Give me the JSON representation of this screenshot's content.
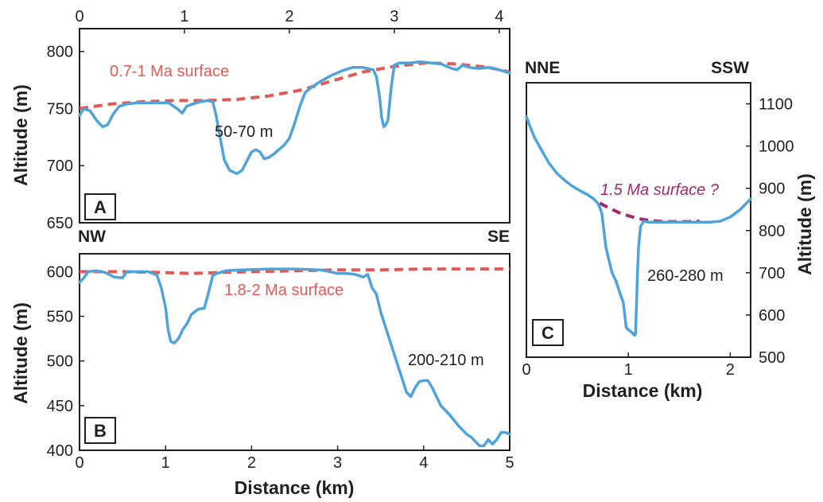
{
  "colors": {
    "profile": "#4fa3d8",
    "surface_red": "#e15a56",
    "surface_purple": "#9e2a6c",
    "ink": "#231f20"
  },
  "chart_data": [
    {
      "type": "line",
      "panel": "A",
      "xlim": [
        0,
        4.1
      ],
      "ylim": [
        650,
        820
      ],
      "x_ticks": [
        0,
        1,
        2,
        3,
        4
      ],
      "y_ticks": [
        650,
        700,
        750,
        800
      ],
      "x_axis_position": "top",
      "ylabel": "Altitude (m)",
      "series": [
        {
          "role": "profile",
          "x": [
            0,
            0.04,
            0.1,
            0.16,
            0.22,
            0.27,
            0.32,
            0.38,
            0.45,
            0.55,
            0.7,
            0.85,
            0.93,
            0.98,
            1.02,
            1.08,
            1.15,
            1.22,
            1.27,
            1.3,
            1.34,
            1.38,
            1.43,
            1.5,
            1.55,
            1.6,
            1.64,
            1.68,
            1.72,
            1.76,
            1.8,
            1.85,
            1.9,
            1.95,
            2.0,
            2.05,
            2.1,
            2.15,
            2.2,
            2.3,
            2.4,
            2.5,
            2.6,
            2.7,
            2.8,
            2.83,
            2.86,
            2.88,
            2.9,
            2.92,
            2.94,
            2.97,
            3.0,
            3.05,
            3.15,
            3.25,
            3.35,
            3.45,
            3.55,
            3.6,
            3.65,
            3.72,
            3.8,
            3.9,
            4.0,
            4.1
          ],
          "y": [
            744,
            750,
            748,
            740,
            734,
            736,
            745,
            752,
            754,
            755,
            755,
            755,
            750,
            746,
            752,
            754,
            756,
            757,
            756,
            745,
            725,
            705,
            696,
            693,
            696,
            705,
            712,
            714,
            712,
            706,
            707,
            710,
            714,
            718,
            724,
            737,
            752,
            764,
            768,
            774,
            779,
            783,
            786,
            786,
            784,
            778,
            760,
            742,
            734,
            736,
            740,
            768,
            788,
            790,
            790,
            791,
            790,
            789,
            785,
            784,
            788,
            786,
            785,
            786,
            784,
            781
          ]
        },
        {
          "role": "surface",
          "name": "0.7-1 Ma surface",
          "x": [
            0,
            0.3,
            0.6,
            0.9,
            1.2,
            1.5,
            1.8,
            2.1,
            2.4,
            2.7,
            3.0,
            3.3,
            3.6,
            3.9,
            4.1
          ],
          "y": [
            750,
            754,
            756,
            757,
            757,
            758,
            761,
            766,
            774,
            782,
            787,
            790,
            789,
            786,
            782
          ]
        }
      ],
      "annotations": [
        "0.7-1 Ma surface",
        "50-70 m"
      ]
    },
    {
      "type": "line",
      "panel": "B",
      "direction_left": "NW",
      "direction_right": "SE",
      "xlim": [
        0,
        5
      ],
      "ylim": [
        400,
        620
      ],
      "x_ticks": [
        0,
        1,
        2,
        3,
        4,
        5
      ],
      "y_ticks": [
        400,
        450,
        500,
        550,
        600
      ],
      "xlabel": "Distance (km)",
      "ylabel": "Altitude (m)",
      "series": [
        {
          "role": "profile",
          "x": [
            0,
            0.05,
            0.1,
            0.2,
            0.3,
            0.4,
            0.5,
            0.55,
            0.65,
            0.8,
            0.9,
            0.95,
            1.0,
            1.03,
            1.06,
            1.1,
            1.15,
            1.2,
            1.25,
            1.3,
            1.38,
            1.45,
            1.5,
            1.55,
            1.6,
            1.7,
            1.9,
            2.2,
            2.5,
            2.8,
            3.0,
            3.1,
            3.2,
            3.3,
            3.35,
            3.4,
            3.45,
            3.5,
            3.55,
            3.6,
            3.65,
            3.7,
            3.75,
            3.8,
            3.85,
            3.9,
            3.95,
            4.0,
            4.05,
            4.1,
            4.15,
            4.2,
            4.3,
            4.4,
            4.5,
            4.55,
            4.6,
            4.65,
            4.7,
            4.75,
            4.8,
            4.85,
            4.9,
            4.95,
            5.0
          ],
          "y": [
            588,
            593,
            600,
            601,
            599,
            594,
            593,
            600,
            600,
            600,
            596,
            582,
            560,
            535,
            522,
            520,
            525,
            535,
            542,
            552,
            558,
            559,
            577,
            596,
            598,
            601,
            602,
            603,
            603,
            602,
            598,
            598,
            597,
            594,
            597,
            582,
            575,
            555,
            540,
            525,
            510,
            495,
            480,
            465,
            460,
            470,
            477,
            478,
            478,
            470,
            460,
            450,
            440,
            428,
            418,
            415,
            410,
            405,
            405,
            412,
            407,
            412,
            420,
            420,
            418
          ]
        },
        {
          "role": "surface",
          "name": "1.8-2 Ma surface",
          "x": [
            0,
            0.5,
            1.0,
            1.3,
            1.6,
            2.0,
            2.5,
            3.0,
            3.5,
            4.0,
            4.5,
            5.0
          ],
          "y": [
            600,
            600,
            599,
            598,
            599,
            600,
            601,
            602,
            602,
            603,
            603,
            603
          ]
        }
      ],
      "annotations": [
        "1.8-2 Ma surface",
        "200-210 m"
      ]
    },
    {
      "type": "line",
      "panel": "C",
      "direction_left": "NNE",
      "direction_right": "SSW",
      "xlim": [
        0,
        2.2
      ],
      "ylim": [
        500,
        1150
      ],
      "x_ticks": [
        0,
        1,
        2
      ],
      "y_ticks": [
        500,
        600,
        700,
        800,
        900,
        1000,
        1100
      ],
      "y_axis_position": "right",
      "xlabel": "Distance (km)",
      "ylabel": "Altitude (m)",
      "series": [
        {
          "role": "profile",
          "x": [
            0,
            0.03,
            0.08,
            0.15,
            0.22,
            0.3,
            0.38,
            0.45,
            0.52,
            0.6,
            0.66,
            0.7,
            0.72,
            0.74,
            0.76,
            0.78,
            0.8,
            0.84,
            0.88,
            0.92,
            0.95,
            0.98,
            1.0,
            1.03,
            1.06,
            1.07,
            1.08,
            1.09,
            1.1,
            1.12,
            1.15,
            1.2,
            1.3,
            1.4,
            1.5,
            1.6,
            1.7,
            1.8,
            1.9,
            2.0,
            2.1,
            2.2
          ],
          "y": [
            1070,
            1050,
            1020,
            990,
            960,
            935,
            918,
            905,
            895,
            885,
            875,
            865,
            855,
            840,
            800,
            760,
            740,
            700,
            680,
            650,
            630,
            570,
            565,
            560,
            552,
            555,
            620,
            700,
            760,
            810,
            822,
            820,
            820,
            820,
            820,
            820,
            820,
            820,
            822,
            832,
            850,
            875
          ]
        },
        {
          "role": "surface",
          "name": "1.5 Ma surface ?",
          "x": [
            0.72,
            0.8,
            0.9,
            1.0,
            1.1,
            1.2,
            1.3,
            1.4,
            1.5,
            1.6,
            1.7
          ],
          "y": [
            865,
            855,
            843,
            835,
            828,
            824,
            822,
            821,
            821,
            821,
            822
          ]
        }
      ],
      "annotations": [
        "1.5 Ma surface ?",
        "260-280 m"
      ]
    }
  ]
}
